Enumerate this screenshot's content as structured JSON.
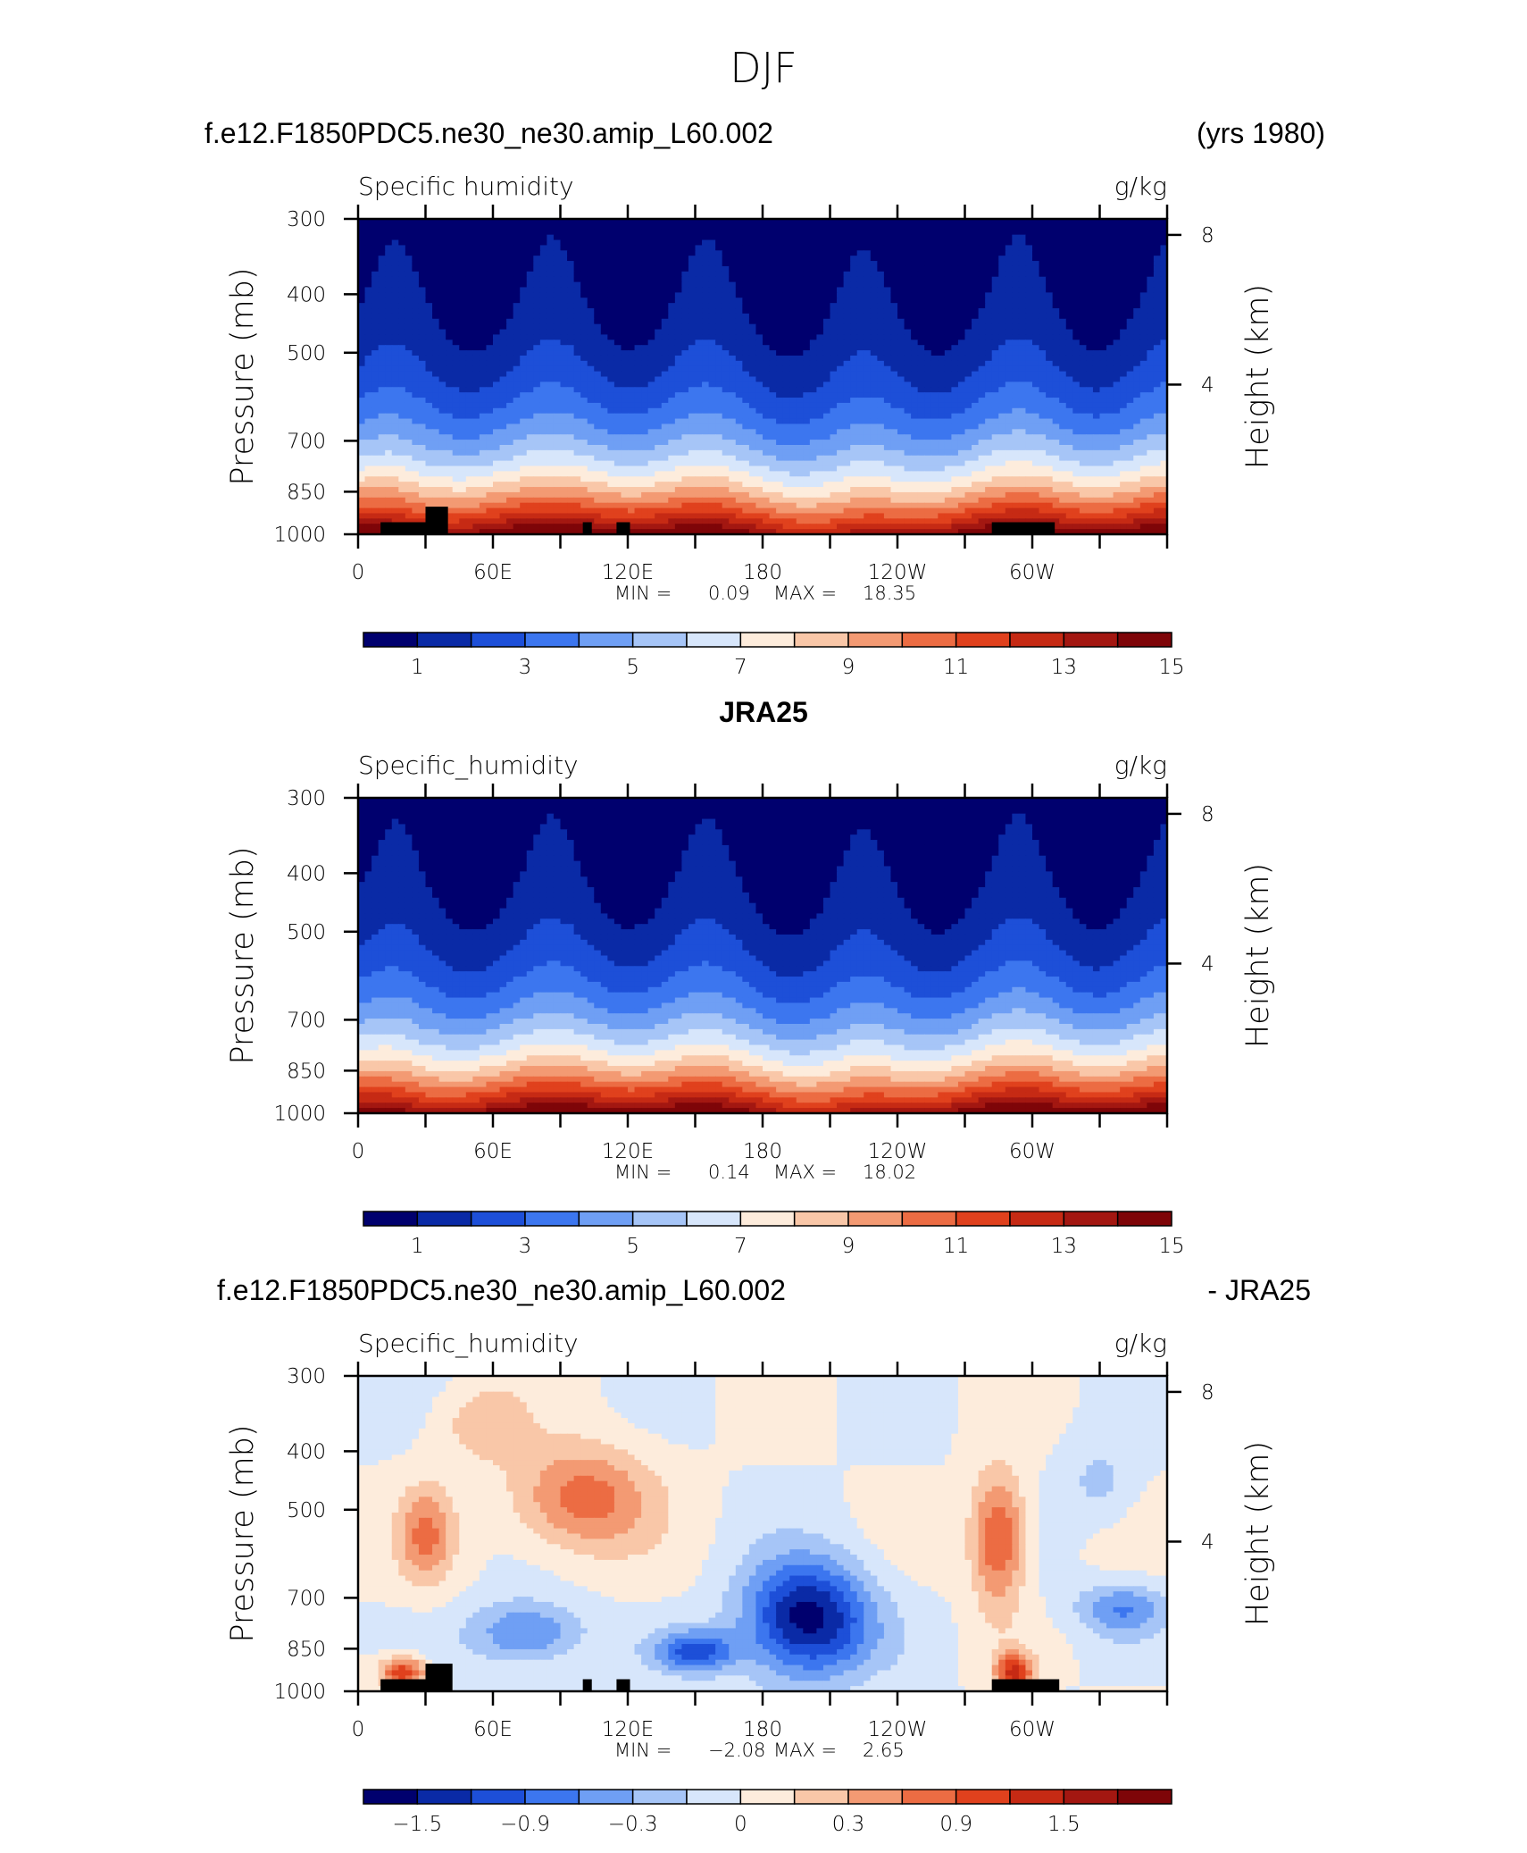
{
  "figure_title": "DJF",
  "colors": {
    "abs_levels": [
      "#00006e",
      "#0a2aa6",
      "#1d4fd8",
      "#3c76ef",
      "#6f9ff4",
      "#a6c5f7",
      "#d7e6fb",
      "#fdecdc",
      "#f9c7a8",
      "#f39a73",
      "#ec6c43",
      "#e0411d",
      "#c62a14",
      "#a31711",
      "#7e0508"
    ],
    "diff_levels": [
      "#00006e",
      "#0a2aa6",
      "#1d4fd8",
      "#3c76ef",
      "#6f9ff4",
      "#a6c5f7",
      "#d7e6fb",
      "#fdecdc",
      "#f9c7a8",
      "#f39a73",
      "#ec6c43",
      "#e0411d",
      "#c62a14",
      "#a31711",
      "#7e0508"
    ],
    "topography": "#000000"
  },
  "panels": [
    {
      "header_left": "f.e12.F1850PDC5.ne30_ne30.amip_L60.002",
      "header_right": "(yrs 1980)",
      "header_center": "",
      "variable": "Specific humidity",
      "units": "g/kg",
      "ylabel": "Pressure (mb)",
      "y2label": "Height (km)",
      "yticks": [
        "300",
        "400",
        "500",
        "700",
        "850",
        "1000"
      ],
      "y2ticks": [
        "8",
        "4"
      ],
      "xticks": [
        "0",
        "60E",
        "120E",
        "180",
        "120W",
        "60W"
      ],
      "min_label": "MIN =",
      "min_value": "0.09",
      "max_label": "MAX =",
      "max_value": "18.35",
      "colorbar_labels": [
        "1",
        "3",
        "5",
        "7",
        "9",
        "11",
        "13",
        "15"
      ]
    },
    {
      "header_left": "",
      "header_right": "",
      "header_center": "JRA25",
      "variable": "Specific_humidity",
      "units": "g/kg",
      "ylabel": "Pressure (mb)",
      "y2label": "Height (km)",
      "yticks": [
        "300",
        "400",
        "500",
        "700",
        "850",
        "1000"
      ],
      "y2ticks": [
        "8",
        "4"
      ],
      "xticks": [
        "0",
        "60E",
        "120E",
        "180",
        "120W",
        "60W"
      ],
      "min_label": "MIN =",
      "min_value": "0.14",
      "max_label": "MAX =",
      "max_value": "18.02",
      "colorbar_labels": [
        "1",
        "3",
        "5",
        "7",
        "9",
        "11",
        "13",
        "15"
      ]
    },
    {
      "header_left": "f.e12.F1850PDC5.ne30_ne30.amip_L60.002",
      "header_right": "- JRA25",
      "header_center": "",
      "variable": "Specific_humidity",
      "units": "g/kg",
      "ylabel": "Pressure (mb)",
      "y2label": "Height (km)",
      "yticks": [
        "300",
        "400",
        "500",
        "700",
        "850",
        "1000"
      ],
      "y2ticks": [
        "8",
        "4"
      ],
      "xticks": [
        "0",
        "60E",
        "120E",
        "180",
        "120W",
        "60W"
      ],
      "min_label": "MIN =",
      "min_value": "−2.08",
      "max_label": "MAX =",
      "max_value": "2.65",
      "colorbar_labels": [
        "−1.5",
        "−0.9",
        "−0.3",
        "0",
        "0.3",
        "0.9",
        "1.5"
      ]
    }
  ],
  "chart_data": [
    {
      "type": "heatmap",
      "title": "f.e12.F1850PDC5.ne30_ne30.amip_L60.002 (yrs 1980)",
      "variable": "Specific humidity",
      "units": "g/kg",
      "x_domain": "longitude 0–360",
      "y_axis": "pressure (mb), log scale, 1000 at bottom",
      "ylim": [
        1000,
        300
      ],
      "levels": [
        0,
        1,
        2,
        3,
        4,
        5,
        6,
        7,
        8,
        9,
        10,
        11,
        12,
        13,
        14,
        15
      ],
      "longitudes": [
        0,
        30,
        60,
        90,
        120,
        150,
        180,
        210,
        240,
        270,
        300,
        330,
        360
      ],
      "pressure_levels": [
        1000,
        850,
        700,
        500,
        400,
        300
      ],
      "profile_scale": [
        1.0,
        0.75,
        1.0,
        0.95,
        1.0,
        0.95,
        0.85,
        0.6,
        0.7,
        0.95,
        1.0,
        0.95,
        1.0
      ],
      "min": 0.09,
      "max": 18.35,
      "topography_blocks": [
        [
          10,
          30,
          955
        ],
        [
          30,
          40,
          900
        ],
        [
          100,
          104,
          955
        ],
        [
          115,
          121,
          955
        ],
        [
          282,
          310,
          955
        ]
      ]
    },
    {
      "type": "heatmap",
      "title": "JRA25",
      "variable": "Specific_humidity",
      "units": "g/kg",
      "x_domain": "longitude 0–360",
      "y_axis": "pressure (mb), log scale, 1000 at bottom",
      "ylim": [
        1000,
        300
      ],
      "levels": [
        0,
        1,
        2,
        3,
        4,
        5,
        6,
        7,
        8,
        9,
        10,
        11,
        12,
        13,
        14,
        15
      ],
      "longitudes": [
        0,
        30,
        60,
        90,
        120,
        150,
        180,
        210,
        240,
        270,
        300,
        330,
        360
      ],
      "pressure_levels": [
        1000,
        850,
        700,
        500,
        400,
        300
      ],
      "profile_scale": [
        0.95,
        0.7,
        0.95,
        0.95,
        1.0,
        0.95,
        0.85,
        0.6,
        0.7,
        0.95,
        1.0,
        0.95,
        0.95
      ],
      "min": 0.14,
      "max": 18.02
    },
    {
      "type": "heatmap",
      "title": "f.e12.F1850PDC5.ne30_ne30.amip_L60.002 - JRA25",
      "variable": "Specific_humidity",
      "units": "g/kg",
      "x_domain": "longitude 0–360",
      "y_axis": "pressure (mb), log scale, 1000 at bottom",
      "ylim": [
        1000,
        300
      ],
      "levels": [
        -2.1,
        -1.8,
        -1.5,
        -1.2,
        -0.9,
        -0.6,
        -0.3,
        0,
        0.3,
        0.6,
        0.9,
        1.2,
        1.5,
        1.8,
        2.1
      ],
      "anomalies": [
        {
          "lon": 30,
          "p": 550,
          "value": 0.9,
          "dlon": 12,
          "dlogp": 0.18
        },
        {
          "lon": 100,
          "p": 480,
          "value": 1.1,
          "dlon": 30,
          "dlogp": 0.2
        },
        {
          "lon": 55,
          "p": 360,
          "value": 0.5,
          "dlon": 20,
          "dlogp": 0.15
        },
        {
          "lon": 200,
          "p": 760,
          "value": -2.0,
          "dlon": 28,
          "dlogp": 0.22
        },
        {
          "lon": 75,
          "p": 800,
          "value": -1.0,
          "dlon": 25,
          "dlogp": 0.12
        },
        {
          "lon": 150,
          "p": 860,
          "value": -1.3,
          "dlon": 18,
          "dlogp": 0.08
        },
        {
          "lon": 285,
          "p": 560,
          "value": 1.3,
          "dlon": 12,
          "dlogp": 0.25
        },
        {
          "lon": 340,
          "p": 730,
          "value": -0.9,
          "dlon": 20,
          "dlogp": 0.1
        },
        {
          "lon": 20,
          "p": 930,
          "value": 1.5,
          "dlon": 10,
          "dlogp": 0.06
        },
        {
          "lon": 292,
          "p": 930,
          "value": 1.6,
          "dlon": 8,
          "dlogp": 0.07
        },
        {
          "lon": 330,
          "p": 450,
          "value": -0.4,
          "dlon": 15,
          "dlogp": 0.15
        }
      ],
      "min": -2.08,
      "max": 2.65,
      "topography_blocks": [
        [
          10,
          30,
          955
        ],
        [
          30,
          42,
          900
        ],
        [
          100,
          104,
          955
        ],
        [
          115,
          121,
          955
        ],
        [
          282,
          312,
          955
        ]
      ]
    }
  ]
}
